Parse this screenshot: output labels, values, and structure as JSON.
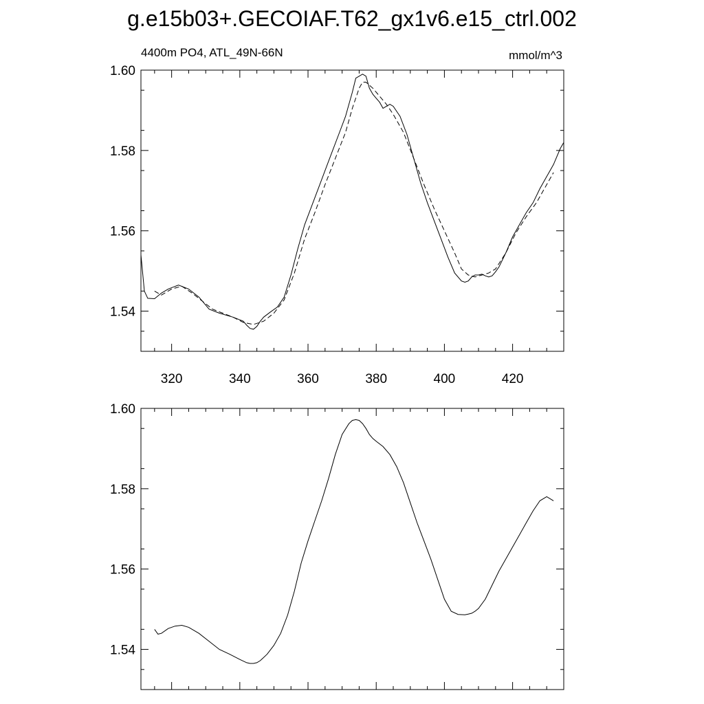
{
  "title": "g.e15b03+.GECOIAF.T62_gx1v6.e15_ctrl.002",
  "chart_data": [
    {
      "type": "line",
      "title": "",
      "subtitle_left": "4400m PO4, ATL_49N-66N",
      "subtitle_right": "mmol/m^3",
      "xlabel": "",
      "ylabel": "",
      "xlim": [
        311,
        435
      ],
      "ylim": [
        1.53,
        1.6
      ],
      "x_ticks": [
        320,
        340,
        360,
        380,
        400,
        420
      ],
      "x_tick_labels": [
        "320",
        "340",
        "360",
        "380",
        "400",
        "420"
      ],
      "y_ticks": [
        1.54,
        1.56,
        1.58,
        1.6
      ],
      "y_tick_labels": [
        "1.54",
        "1.56",
        "1.58",
        "1.60"
      ],
      "grid": false,
      "series": [
        {
          "style": "solid",
          "x": [
            311,
            312,
            313,
            315,
            317,
            319,
            322,
            325,
            328,
            331,
            334,
            338,
            341,
            342,
            343,
            344,
            345,
            346,
            347,
            349,
            351,
            353,
            355,
            357,
            359,
            361,
            363,
            365,
            367,
            369,
            371,
            372,
            373,
            374,
            375,
            376,
            377,
            378,
            379,
            380,
            381,
            382,
            383,
            384,
            385,
            387,
            389,
            391,
            393,
            395,
            397,
            399,
            401,
            403,
            405,
            406,
            407,
            408,
            409,
            410,
            411,
            412,
            413,
            414,
            415,
            416,
            418,
            420,
            422,
            424,
            426,
            428,
            430,
            432,
            434,
            435
          ],
          "y": [
            1.554,
            1.545,
            1.5432,
            1.5431,
            1.5445,
            1.5455,
            1.5465,
            1.5455,
            1.5435,
            1.5405,
            1.5395,
            1.5385,
            1.5375,
            1.5365,
            1.5357,
            1.5355,
            1.5362,
            1.5375,
            1.5385,
            1.5398,
            1.541,
            1.5435,
            1.549,
            1.5555,
            1.5615,
            1.566,
            1.5705,
            1.575,
            1.5795,
            1.584,
            1.5885,
            1.5915,
            1.5945,
            1.598,
            1.5985,
            1.599,
            1.5985,
            1.5955,
            1.594,
            1.593,
            1.592,
            1.5905,
            1.591,
            1.5915,
            1.591,
            1.5885,
            1.584,
            1.578,
            1.572,
            1.567,
            1.5625,
            1.558,
            1.5535,
            1.5495,
            1.5475,
            1.5472,
            1.5475,
            1.5485,
            1.549,
            1.549,
            1.5492,
            1.5488,
            1.5485,
            1.5488,
            1.5498,
            1.551,
            1.5545,
            1.5585,
            1.5615,
            1.5645,
            1.567,
            1.5705,
            1.5735,
            1.5765,
            1.5805,
            1.582
          ]
        },
        {
          "style": "dashed",
          "x": [
            315,
            317,
            320,
            323,
            326,
            329,
            332,
            335,
            338,
            341,
            344,
            347,
            350,
            353,
            356,
            359,
            362,
            365,
            368,
            371,
            373,
            375,
            376,
            377,
            379,
            381,
            383,
            385,
            388,
            391,
            394,
            397,
            400,
            403,
            405,
            407,
            409,
            411,
            413,
            415,
            418,
            421,
            424,
            427,
            430,
            432
          ],
          "y": [
            1.545,
            1.544,
            1.5455,
            1.5462,
            1.5445,
            1.5425,
            1.5405,
            1.5395,
            1.5385,
            1.5372,
            1.5367,
            1.5375,
            1.5395,
            1.5428,
            1.5495,
            1.558,
            1.5645,
            1.5715,
            1.578,
            1.5845,
            1.5905,
            1.5955,
            1.597,
            1.597,
            1.5955,
            1.5935,
            1.5915,
            1.589,
            1.5845,
            1.578,
            1.5715,
            1.5655,
            1.56,
            1.5545,
            1.5505,
            1.549,
            1.5485,
            1.549,
            1.5495,
            1.5505,
            1.5545,
            1.5595,
            1.5635,
            1.567,
            1.5715,
            1.5745
          ]
        }
      ]
    },
    {
      "type": "line",
      "title": "",
      "xlabel": "",
      "ylabel": "",
      "xlim": [
        311,
        435
      ],
      "ylim": [
        1.53,
        1.6
      ],
      "x_ticks": [
        320,
        340,
        360,
        380,
        400,
        420
      ],
      "x_tick_labels": [],
      "y_ticks": [
        1.54,
        1.56,
        1.58,
        1.6
      ],
      "y_tick_labels": [
        "1.54",
        "1.56",
        "1.58",
        "1.60"
      ],
      "grid": false,
      "series": [
        {
          "style": "solid",
          "x": [
            315,
            316,
            317,
            319,
            321,
            323,
            325,
            328,
            331,
            334,
            337,
            340,
            342,
            343,
            344,
            345,
            346,
            348,
            350,
            352,
            354,
            356,
            358,
            360,
            362,
            364,
            366,
            368,
            370,
            372,
            373,
            374,
            375,
            376,
            377,
            378,
            379,
            380,
            382,
            384,
            386,
            388,
            390,
            392,
            394,
            396,
            398,
            400,
            402,
            404,
            406,
            407,
            408,
            409,
            410,
            412,
            414,
            416,
            418,
            420,
            422,
            424,
            426,
            428,
            430,
            432
          ],
          "y": [
            1.545,
            1.5438,
            1.544,
            1.5452,
            1.5458,
            1.546,
            1.5455,
            1.544,
            1.542,
            1.54,
            1.5388,
            1.5375,
            1.5367,
            1.5365,
            1.5365,
            1.5367,
            1.5372,
            1.5388,
            1.541,
            1.544,
            1.5485,
            1.5545,
            1.5615,
            1.567,
            1.572,
            1.577,
            1.5825,
            1.5885,
            1.5935,
            1.5962,
            1.597,
            1.5972,
            1.597,
            1.5962,
            1.595,
            1.5935,
            1.5925,
            1.5918,
            1.5905,
            1.5885,
            1.5855,
            1.5815,
            1.5765,
            1.5715,
            1.567,
            1.5625,
            1.5575,
            1.5525,
            1.5495,
            1.5487,
            1.5486,
            1.5488,
            1.549,
            1.5495,
            1.5502,
            1.5525,
            1.556,
            1.5595,
            1.5625,
            1.5655,
            1.5685,
            1.5715,
            1.5745,
            1.577,
            1.578,
            1.577
          ]
        }
      ]
    }
  ]
}
